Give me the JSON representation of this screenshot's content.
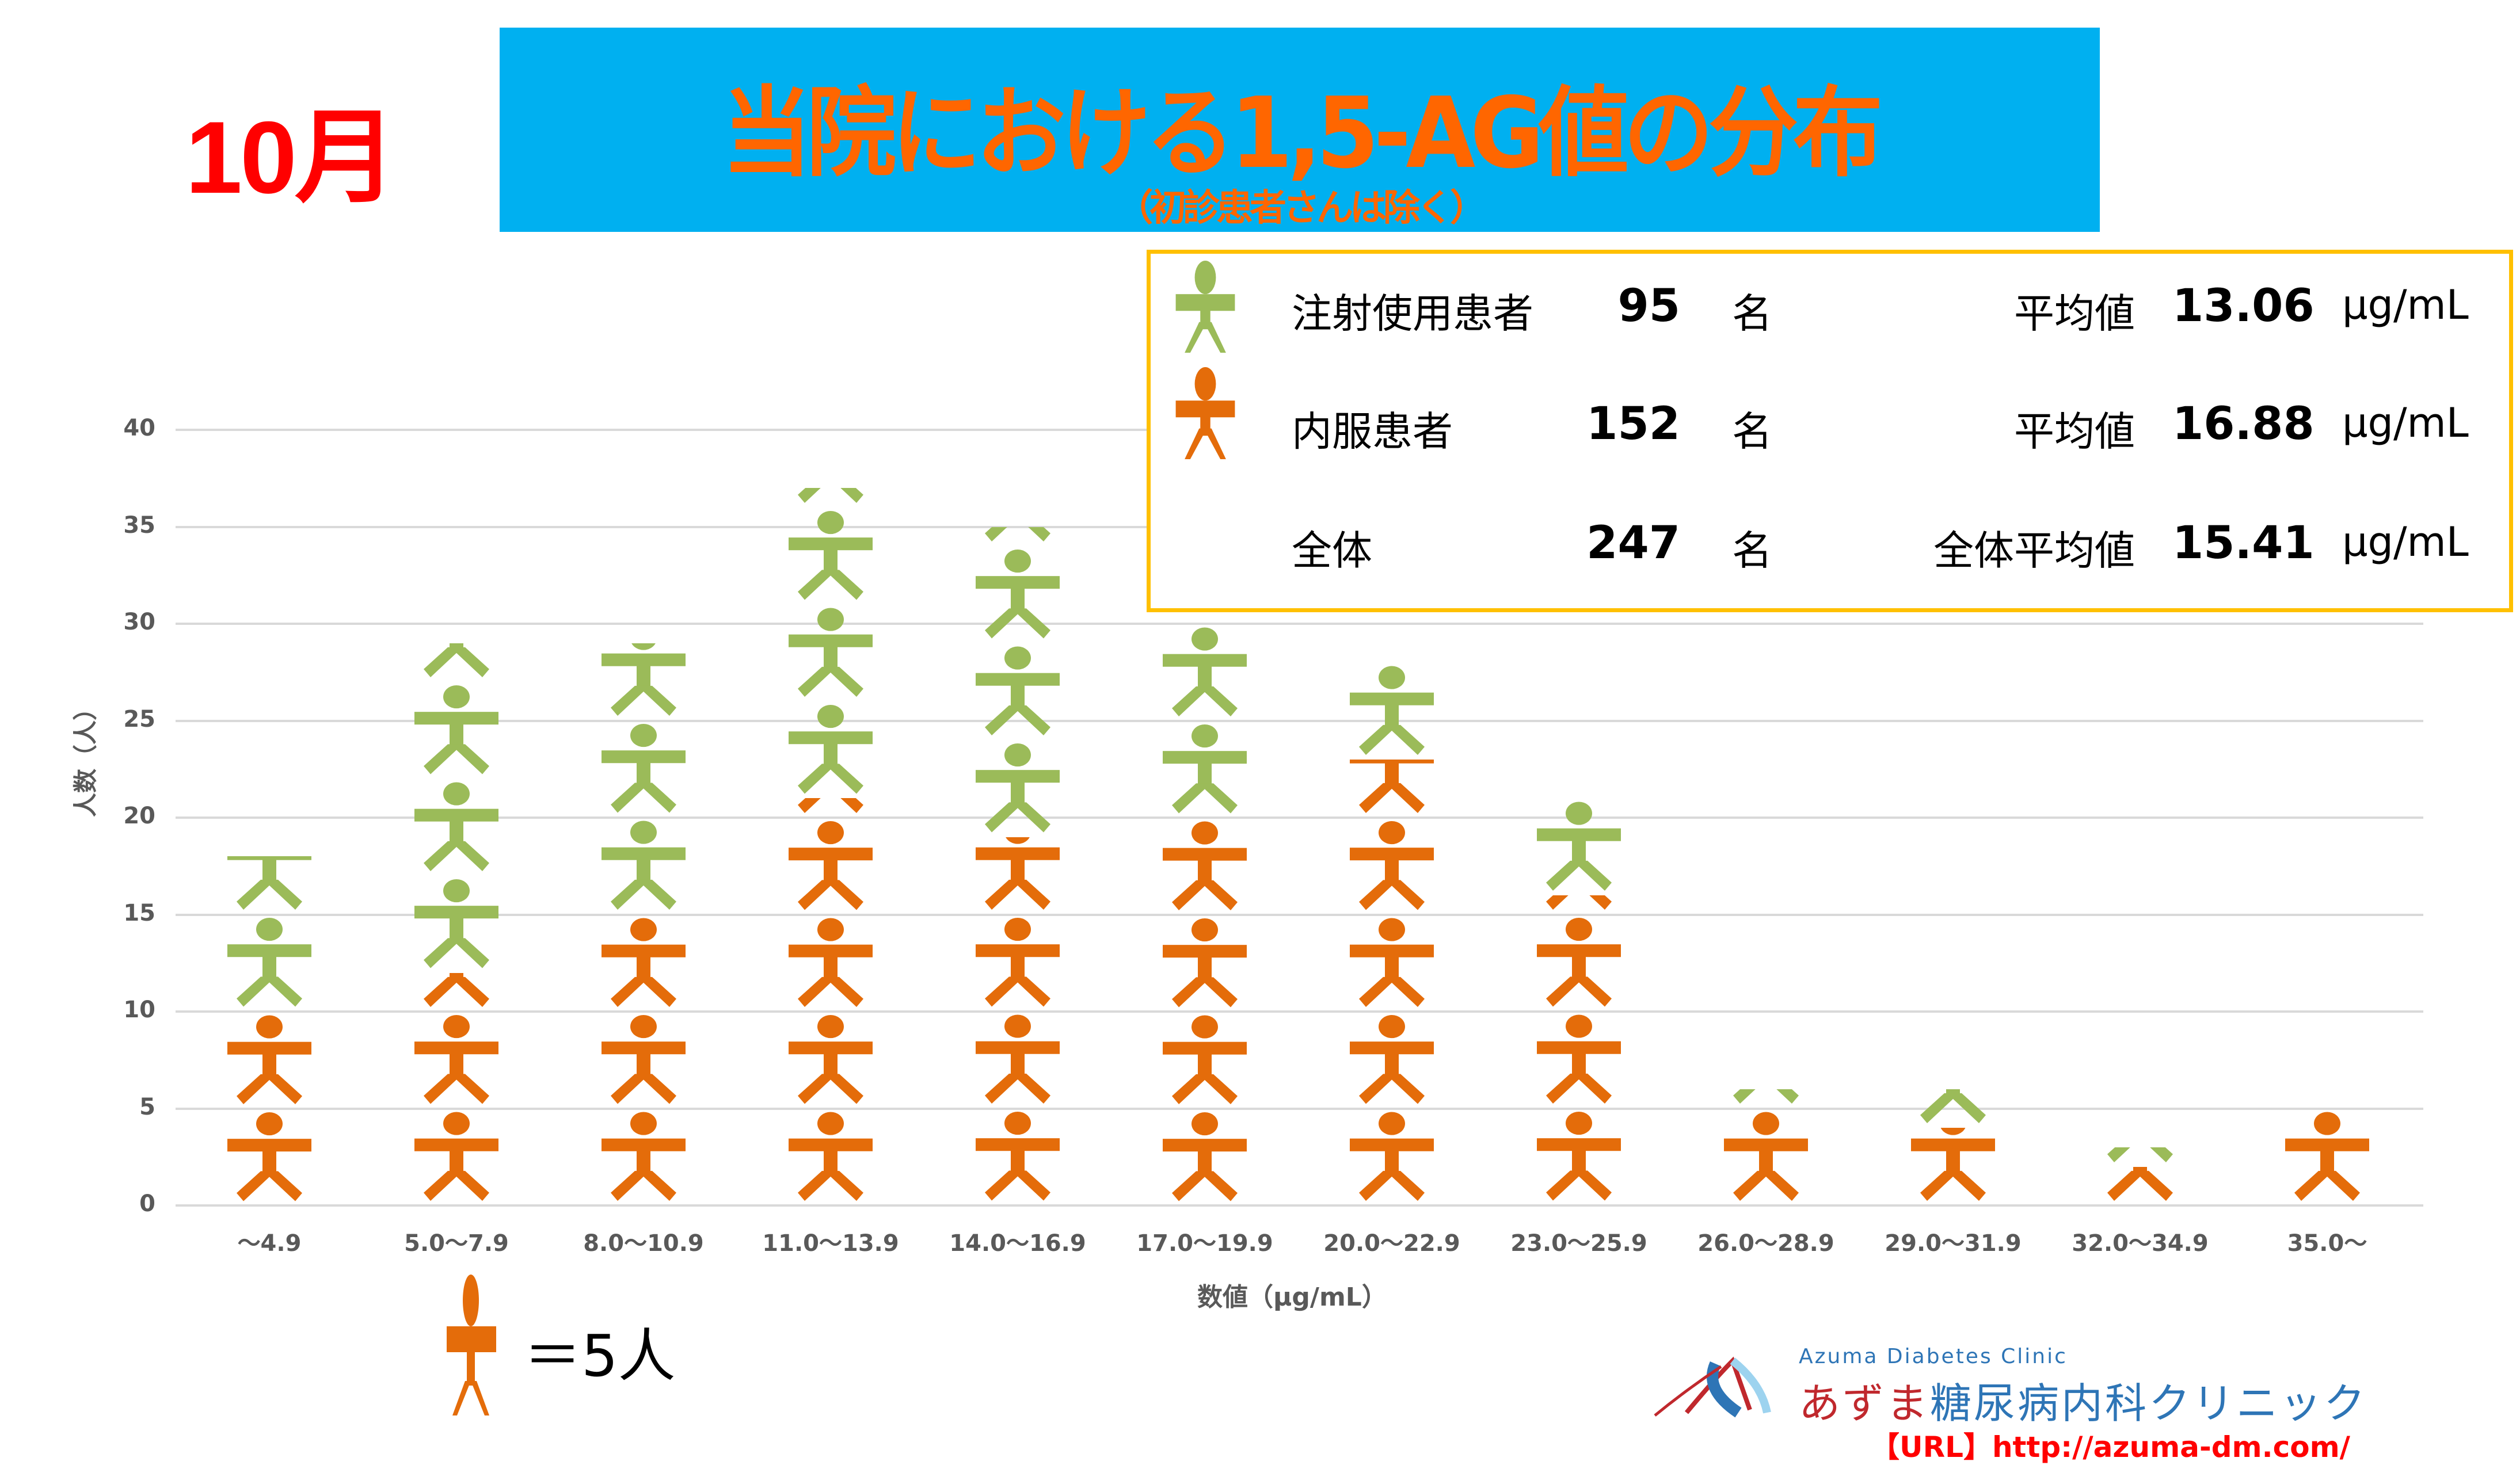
{
  "header": {
    "month": "10月",
    "title": "当院における1,5-AG値の分布",
    "subtitle": "（初診患者さんは除く）"
  },
  "legend": {
    "rows": [
      {
        "name": "注射使用患者",
        "count": "95",
        "unit": "名",
        "avg_label": "平均値",
        "avg": "13.06",
        "avg_unit": "μg/mL",
        "icon": "person-green-icon"
      },
      {
        "name": "内服患者",
        "count": "152",
        "unit": "名",
        "avg_label": "平均値",
        "avg": "16.88",
        "avg_unit": "μg/mL",
        "icon": "person-orange-icon"
      },
      {
        "name": "全体",
        "count": "247",
        "unit": "名",
        "avg_label": "全体平均値",
        "avg": "15.41",
        "avg_unit": "μg/mL",
        "icon": ""
      }
    ]
  },
  "scale_note": "＝5人",
  "logo": {
    "en": "Azuma Diabetes Clinic",
    "jp_red": "あずま",
    "jp_blue": "糖尿病内科クリニック",
    "url": "【URL】http://azuma-dm.com/"
  },
  "colors": {
    "injection": "#9bbb59",
    "oral": "#e46c0a",
    "title_bg": "#00b0f0",
    "title_text": "#ff6600",
    "month": "#ff0000",
    "legend_border": "#ffc000"
  },
  "chart_data": {
    "type": "bar",
    "stacked": true,
    "pictograph": true,
    "units_per_icon": 5,
    "title": "当院における1,5-AG値の分布",
    "subtitle": "（初診患者さんは除く）",
    "xlabel": "数値（μg/mL）",
    "ylabel": "人数（人）",
    "ylim": [
      0,
      40
    ],
    "yticks": [
      0,
      5,
      10,
      15,
      20,
      25,
      30,
      35,
      40
    ],
    "grid": true,
    "categories": [
      "～4.9",
      "5.0～7.9",
      "8.0～10.9",
      "11.0～13.9",
      "14.0～16.9",
      "17.0～19.9",
      "20.0～22.9",
      "23.0～25.9",
      "26.0～28.9",
      "29.0～31.9",
      "32.0～34.9",
      "35.0～"
    ],
    "series": [
      {
        "name": "内服患者",
        "color": "#e46c0a",
        "values": [
          10,
          12,
          15,
          21,
          19,
          20,
          23,
          16,
          5,
          4,
          2,
          5
        ]
      },
      {
        "name": "注射使用患者",
        "color": "#9bbb59",
        "values": [
          8,
          17,
          14,
          16,
          16,
          10,
          5,
          5,
          1,
          2,
          1,
          0
        ]
      }
    ]
  }
}
